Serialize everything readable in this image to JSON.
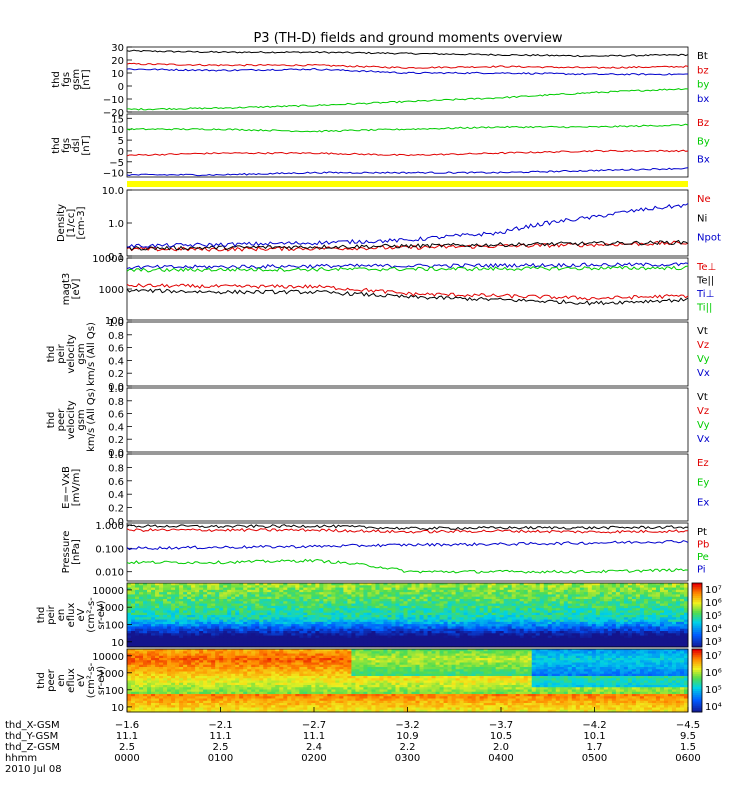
{
  "title": "P3 (TH-D) fields and ground moments overview",
  "panels": [
    {
      "id": "fgs_gsm",
      "ylabel": [
        "thd",
        "fgs",
        "gsm",
        "[nT]"
      ],
      "yticks": [
        "30",
        "20",
        "10",
        "0",
        "−10",
        "−20"
      ],
      "scale": "linear",
      "ylim": [
        -20,
        30
      ],
      "legend": [
        {
          "label": "Bt",
          "color": "#000000"
        },
        {
          "label": "bz",
          "color": "#e00000"
        },
        {
          "label": "by",
          "color": "#00cc00"
        },
        {
          "label": "bx",
          "color": "#0000cc"
        }
      ]
    },
    {
      "id": "fgs_dsl",
      "ylabel": [
        "thd",
        "fgs",
        "dsl",
        "[nT]"
      ],
      "yticks": [
        "15",
        "10",
        "5",
        "0",
        "−5",
        "−10"
      ],
      "scale": "linear",
      "ylim": [
        -12,
        17
      ],
      "legend": [
        {
          "label": "Bz",
          "color": "#e00000"
        },
        {
          "label": "By",
          "color": "#00cc00"
        },
        {
          "label": "Bx",
          "color": "#0000cc"
        }
      ]
    },
    {
      "id": "density",
      "ylabel": [
        "Density",
        "[1/cc]",
        "[cm-3]"
      ],
      "yticks": [
        "10.0",
        "1.0",
        "0.1"
      ],
      "scale": "log",
      "ylim": [
        0.1,
        10
      ],
      "legend": [
        {
          "label": "Ne",
          "color": "#e00000"
        },
        {
          "label": "Ni",
          "color": "#000000"
        },
        {
          "label": "Npot",
          "color": "#0000cc"
        }
      ]
    },
    {
      "id": "temperature",
      "ylabel": [
        "magt3",
        "[eV]"
      ],
      "yticks": [
        "10000",
        "1000",
        "100"
      ],
      "scale": "log",
      "ylim": [
        100,
        10000
      ],
      "legend": [
        {
          "label": "Te⊥",
          "color": "#e00000"
        },
        {
          "label": "Te||",
          "color": "#000000"
        },
        {
          "label": "Ti⊥",
          "color": "#0000cc"
        },
        {
          "label": "Ti||",
          "color": "#00cc00"
        }
      ]
    },
    {
      "id": "peir_velocity",
      "ylabel": [
        "thd",
        "peir",
        "velocity",
        "gsm",
        "km/s (All Qs)"
      ],
      "yticks": [
        "1.0",
        "0.8",
        "0.6",
        "0.4",
        "0.2",
        "0.0"
      ],
      "scale": "linear",
      "ylim": [
        0,
        1
      ],
      "legend": [
        {
          "label": "Vt",
          "color": "#000000"
        },
        {
          "label": "Vz",
          "color": "#e00000"
        },
        {
          "label": "Vy",
          "color": "#00cc00"
        },
        {
          "label": "Vx",
          "color": "#0000cc"
        }
      ]
    },
    {
      "id": "peer_velocity",
      "ylabel": [
        "thd",
        "peer",
        "velocity",
        "gsm",
        "km/s (All Qs)"
      ],
      "yticks": [
        "1.0",
        "0.8",
        "0.6",
        "0.4",
        "0.2",
        "0.0"
      ],
      "scale": "linear",
      "ylim": [
        0,
        1
      ],
      "legend": [
        {
          "label": "Vt",
          "color": "#000000"
        },
        {
          "label": "Vz",
          "color": "#e00000"
        },
        {
          "label": "Vy",
          "color": "#00cc00"
        },
        {
          "label": "Vx",
          "color": "#0000cc"
        }
      ]
    },
    {
      "id": "efield",
      "ylabel": [
        "E=−VxB",
        "[mV/m]"
      ],
      "yticks": [
        "1.0",
        "0.8",
        "0.6",
        "0.4",
        "0.2",
        "0.0"
      ],
      "scale": "linear",
      "ylim": [
        0,
        1
      ],
      "legend": [
        {
          "label": "Ez",
          "color": "#e00000"
        },
        {
          "label": "Ey",
          "color": "#00cc00"
        },
        {
          "label": "Ex",
          "color": "#0000cc"
        }
      ]
    },
    {
      "id": "pressure",
      "ylabel": [
        "Pressure",
        "[nPa]"
      ],
      "yticks": [
        "1.000",
        "0.100",
        "0.010"
      ],
      "scale": "log",
      "ylim": [
        0.004,
        1.2
      ],
      "legend": [
        {
          "label": "Pt",
          "color": "#000000"
        },
        {
          "label": "Pb",
          "color": "#e00000"
        },
        {
          "label": "Pe",
          "color": "#00cc00"
        },
        {
          "label": "Pi",
          "color": "#0000cc"
        }
      ]
    },
    {
      "id": "peir_eflux",
      "ylabel": [
        "thd",
        "peir",
        "en",
        "eflux",
        "eV",
        "(cm²-s-",
        "sr-eV)"
      ],
      "yticks": [
        "10000",
        "1000",
        "100",
        "10"
      ],
      "scale": "log",
      "ylim": [
        5,
        25000
      ],
      "colorbar_ticks": [
        "10⁷",
        "10⁶",
        "10⁵",
        "10⁴",
        "10³"
      ]
    },
    {
      "id": "peer_eflux",
      "ylabel": [
        "thd",
        "peer",
        "en",
        "eflux",
        "eV",
        "(cm²-s-",
        "sr-eV)"
      ],
      "yticks": [
        "10000",
        "1000",
        "100",
        "10"
      ],
      "scale": "log",
      "ylim": [
        5,
        25000
      ],
      "colorbar_ticks": [
        "10⁷",
        "10⁶",
        "10⁵",
        "10⁴"
      ]
    }
  ],
  "xaxis": {
    "row_labels": [
      "thd_X-GSM",
      "thd_Y-GSM",
      "thd_Z-GSM",
      "hhmm",
      "2010 Jul 08"
    ],
    "columns": [
      {
        "x_gsm": "−1.6",
        "y_gsm": "11.1",
        "z_gsm": "2.5",
        "hhmm": "0000"
      },
      {
        "x_gsm": "−2.1",
        "y_gsm": "11.1",
        "z_gsm": "2.5",
        "hhmm": "0100"
      },
      {
        "x_gsm": "−2.7",
        "y_gsm": "11.1",
        "z_gsm": "2.4",
        "hhmm": "0200"
      },
      {
        "x_gsm": "−3.2",
        "y_gsm": "10.9",
        "z_gsm": "2.2",
        "hhmm": "0300"
      },
      {
        "x_gsm": "−3.7",
        "y_gsm": "10.5",
        "z_gsm": "2.0",
        "hhmm": "0400"
      },
      {
        "x_gsm": "−4.2",
        "y_gsm": "10.1",
        "z_gsm": "1.7",
        "hhmm": "0500"
      },
      {
        "x_gsm": "−4.5",
        "y_gsm": "9.5",
        "z_gsm": "1.5",
        "hhmm": "0600"
      }
    ]
  },
  "chart_data": {
    "type": "line",
    "title": "P3 (TH-D) fields and ground moments overview",
    "x": [
      "0000",
      "0100",
      "0200",
      "0300",
      "0400",
      "0500",
      "0600"
    ],
    "xlabel": "hhmm",
    "series": [
      {
        "name": "Bt",
        "panel": "fgs_gsm",
        "values": [
          27,
          26,
          26,
          25,
          24,
          23,
          24
        ]
      },
      {
        "name": "bz",
        "panel": "fgs_gsm",
        "values": [
          17,
          16,
          16,
          14,
          15,
          14,
          15
        ]
      },
      {
        "name": "by",
        "panel": "fgs_gsm",
        "values": [
          -18,
          -17,
          -15,
          -12,
          -9,
          -5,
          -2
        ]
      },
      {
        "name": "bx",
        "panel": "fgs_gsm",
        "values": [
          13,
          12,
          13,
          10,
          10,
          9,
          9
        ]
      },
      {
        "name": "Bz",
        "panel": "fgs_dsl",
        "values": [
          -2,
          -1,
          -1,
          -2,
          -1,
          0,
          0
        ]
      },
      {
        "name": "By",
        "panel": "fgs_dsl",
        "values": [
          10,
          10,
          9,
          10,
          11,
          11,
          12
        ]
      },
      {
        "name": "Bx",
        "panel": "fgs_dsl",
        "values": [
          -11,
          -11,
          -10,
          -10,
          -10,
          -9,
          -8
        ]
      },
      {
        "name": "Ne",
        "panel": "density",
        "values": [
          0.16,
          0.16,
          0.17,
          0.18,
          0.2,
          0.22,
          0.25
        ]
      },
      {
        "name": "Ni",
        "panel": "density",
        "values": [
          0.17,
          0.18,
          0.19,
          0.2,
          0.22,
          0.24,
          0.26
        ]
      },
      {
        "name": "Npot",
        "panel": "density",
        "values": [
          0.2,
          0.22,
          0.25,
          0.3,
          0.5,
          1.5,
          3.5
        ]
      },
      {
        "name": "Te⊥",
        "panel": "temperature",
        "values": [
          1300,
          1200,
          1200,
          700,
          600,
          500,
          600
        ]
      },
      {
        "name": "Te||",
        "panel": "temperature",
        "values": [
          900,
          800,
          800,
          550,
          450,
          350,
          450
        ]
      },
      {
        "name": "Ti⊥",
        "panel": "temperature",
        "values": [
          5000,
          5200,
          5500,
          5600,
          5800,
          6000,
          6200
        ]
      },
      {
        "name": "Ti||",
        "panel": "temperature",
        "values": [
          4000,
          4200,
          4300,
          4400,
          4500,
          4700,
          4800
        ]
      },
      {
        "name": "Pt",
        "panel": "pressure",
        "values": [
          0.9,
          0.85,
          0.9,
          0.7,
          0.75,
          0.75,
          0.8
        ]
      },
      {
        "name": "Pb",
        "panel": "pressure",
        "values": [
          0.6,
          0.6,
          0.6,
          0.5,
          0.55,
          0.5,
          0.55
        ]
      },
      {
        "name": "Pe",
        "panel": "pressure",
        "values": [
          0.025,
          0.025,
          0.03,
          0.01,
          0.01,
          0.01,
          0.012
        ]
      },
      {
        "name": "Pi",
        "panel": "pressure",
        "values": [
          0.1,
          0.11,
          0.12,
          0.14,
          0.15,
          0.17,
          0.2
        ]
      }
    ]
  }
}
